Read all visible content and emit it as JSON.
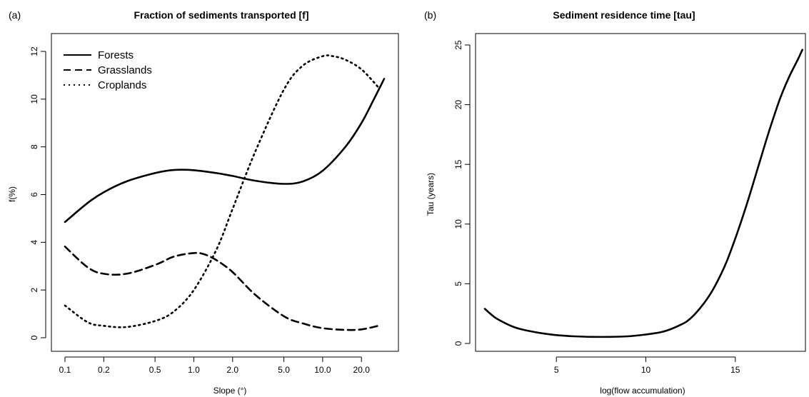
{
  "chart_data": [
    {
      "panel": "(a)",
      "type": "line",
      "title": "Fraction of sediments transported [f]",
      "xlabel": "Slope (°)",
      "ylabel": "f(%)",
      "xscale": "log",
      "xlim": [
        0.1,
        30
      ],
      "ylim": [
        0,
        12
      ],
      "xticks": [
        0.1,
        0.2,
        0.5,
        1.0,
        2.0,
        5.0,
        10.0,
        20.0
      ],
      "xtick_labels": [
        "0.1",
        "0.2",
        "0.5",
        "1.0",
        "2.0",
        "5.0",
        "10.0",
        "20.0"
      ],
      "yticks": [
        0,
        2,
        4,
        6,
        8,
        10,
        12
      ],
      "ytick_labels": [
        "0",
        "2",
        "4",
        "6",
        "8",
        "10",
        "12"
      ],
      "grid": false,
      "legend_position": "top-left",
      "series": [
        {
          "name": "Forests",
          "line_style": "solid",
          "x": [
            0.1,
            0.15,
            0.2,
            0.3,
            0.5,
            0.7,
            1.0,
            1.5,
            2.0,
            3.0,
            5.0,
            7.0,
            10.0,
            15.0,
            20.0,
            25.0,
            30.0
          ],
          "y": [
            4.85,
            5.65,
            6.1,
            6.55,
            6.9,
            7.03,
            7.02,
            6.9,
            6.78,
            6.58,
            6.45,
            6.55,
            7.0,
            8.0,
            9.0,
            10.0,
            10.85
          ]
        },
        {
          "name": "Grasslands",
          "line_style": "dashed",
          "x": [
            0.1,
            0.15,
            0.2,
            0.3,
            0.5,
            0.7,
            1.0,
            1.2,
            1.5,
            2.0,
            3.0,
            5.0,
            7.0,
            10.0,
            15.0,
            20.0,
            27.0
          ],
          "y": [
            3.82,
            2.95,
            2.68,
            2.68,
            3.05,
            3.4,
            3.55,
            3.5,
            3.25,
            2.75,
            1.8,
            0.9,
            0.6,
            0.4,
            0.33,
            0.35,
            0.5
          ]
        },
        {
          "name": "Croplands",
          "line_style": "dotted",
          "x": [
            0.1,
            0.15,
            0.2,
            0.3,
            0.5,
            0.7,
            1.0,
            1.5,
            2.0,
            3.0,
            5.0,
            7.0,
            10.0,
            12.0,
            15.0,
            20.0,
            27.0
          ],
          "y": [
            1.35,
            0.65,
            0.5,
            0.45,
            0.7,
            1.1,
            2.0,
            3.7,
            5.4,
            7.8,
            10.4,
            11.4,
            11.8,
            11.8,
            11.65,
            11.25,
            10.5
          ]
        }
      ]
    },
    {
      "panel": "(b)",
      "type": "line",
      "title": "Sediment residence time [tau]",
      "xlabel": "log(flow accumulation)",
      "ylabel": "Tau (years)",
      "xlim": [
        1.0,
        18.8
      ],
      "ylim": [
        0,
        25
      ],
      "xticks": [
        5,
        10,
        15
      ],
      "xtick_labels": [
        "5",
        "10",
        "15"
      ],
      "yticks": [
        0,
        5,
        10,
        15,
        20,
        25
      ],
      "ytick_labels": [
        "0",
        "5",
        "10",
        "15",
        "20",
        "25"
      ],
      "grid": false,
      "series": [
        {
          "line_style": "solid",
          "x": [
            1.0,
            1.5,
            2.0,
            2.5,
            3.0,
            4.0,
            5.0,
            6.0,
            7.0,
            8.0,
            9.0,
            10.0,
            11.0,
            12.0,
            12.5,
            13.0,
            13.5,
            14.0,
            14.5,
            15.0,
            15.5,
            16.0,
            16.5,
            17.0,
            17.5,
            18.0,
            18.5,
            18.75
          ],
          "y": [
            2.9,
            2.25,
            1.8,
            1.45,
            1.2,
            0.9,
            0.7,
            0.6,
            0.55,
            0.55,
            0.6,
            0.75,
            1.0,
            1.6,
            2.1,
            2.9,
            3.9,
            5.2,
            6.8,
            8.8,
            11.0,
            13.4,
            15.9,
            18.3,
            20.5,
            22.3,
            23.8,
            24.6
          ]
        }
      ]
    }
  ]
}
